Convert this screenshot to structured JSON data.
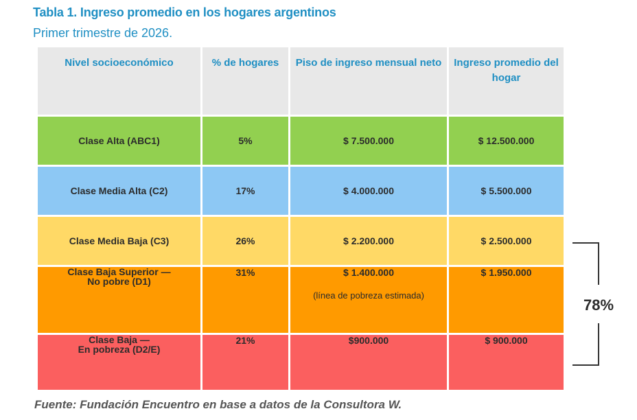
{
  "title": "Tabla 1. Ingreso promedio en los hogares argentinos",
  "subtitle": "Primer trimestre de 2026.",
  "table": {
    "headers": [
      "Nivel socioeconómico",
      "% de hogares",
      "Piso de ingreso mensual neto",
      "Ingreso promedio del hogar"
    ],
    "rows": [
      {
        "nivel": "Clase Alta (ABC1)",
        "pct": "5%",
        "piso": "$ 7.500.000",
        "promedio": "$ 12.500.000",
        "color": "#92d050"
      },
      {
        "nivel": "Clase Media Alta (C2)",
        "pct": "17%",
        "piso": "$ 4.000.000",
        "promedio": "$ 5.500.000",
        "color": "#8dc8f4"
      },
      {
        "nivel": "Clase Media Baja (C3)",
        "pct": "26%",
        "piso": "$ 2.200.000",
        "promedio": "$ 2.500.000",
        "color": "#ffd966"
      },
      {
        "nivel_line1": "Clase Baja Superior —",
        "nivel_line2": "No pobre (D1)",
        "pct": "31%",
        "piso": "$ 1.400.000",
        "piso_note": "(línea de pobreza estimada)",
        "promedio": "$ 1.950.000",
        "color": "#ff9a00"
      },
      {
        "nivel_line1": "Clase Baja —",
        "nivel_line2": "En pobreza (D2/E)",
        "pct": "21%",
        "piso": "$900.000",
        "promedio": "$ 900.000",
        "color": "#fb5f5f"
      }
    ]
  },
  "bracket_label": "78%",
  "source": "Fuente: Fundación Encuentro en base a datos de la Consultora W.",
  "colors": {
    "title": "#1f8fc3",
    "header_bg": "#e8e8e8"
  }
}
